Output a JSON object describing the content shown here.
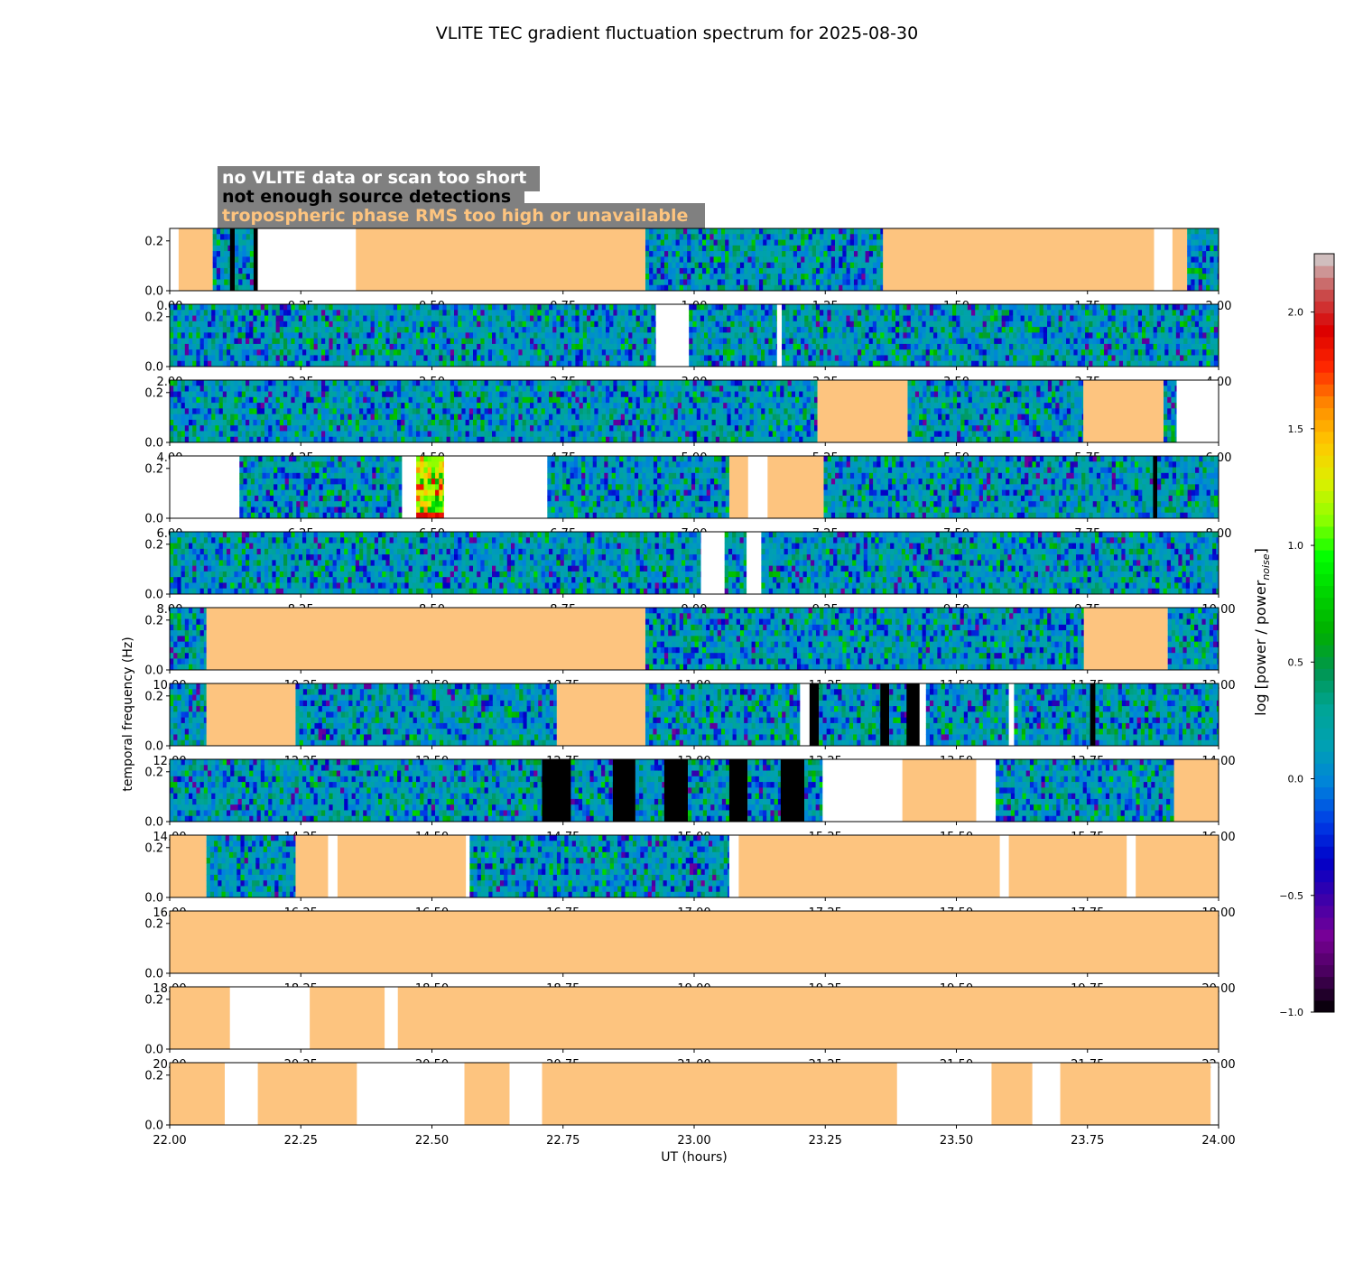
{
  "chart_data": {
    "type": "heatmap",
    "title": "VLITE TEC gradient fluctuation spectrum for 2025-08-30",
    "xlabel": "UT (hours)",
    "ylabel": "temporal frequency (Hz)",
    "colorbar": {
      "label": "log [power / power",
      "label_sub": "noise",
      "label_end": "]",
      "range": [
        -1.0,
        2.25
      ],
      "ticks": [
        "−1.0",
        "−0.5",
        "0.0",
        "0.5",
        "1.0",
        "1.5",
        "2.0"
      ],
      "tick_values": [
        -1.0,
        -0.5,
        0.0,
        0.5,
        1.0,
        1.5,
        2.0
      ]
    },
    "legend": [
      {
        "label": "no VLITE data or scan too short",
        "color": "#ffffff"
      },
      {
        "label": "not enough source detections",
        "color": "#000000"
      },
      {
        "label": "tropospheric phase RMS too high or unavailable",
        "color": "#fdc47f"
      }
    ],
    "ylim": [
      0,
      0.25
    ],
    "yticks": [
      "0.0",
      "0.2"
    ],
    "ytick_values": [
      0.0,
      0.2
    ],
    "panels": [
      {
        "xlim": [
          0,
          2
        ],
        "xticks": [
          "0.00",
          "0.25",
          "0.50",
          "0.75",
          "1.00",
          "1.25",
          "1.50",
          "1.75",
          "2.00"
        ],
        "segments": [
          {
            "start": 0.0,
            "end": 0.017,
            "status": "none"
          },
          {
            "start": 0.017,
            "end": 0.082,
            "status": "tropo"
          },
          {
            "start": 0.082,
            "end": 0.115,
            "status": "data"
          },
          {
            "start": 0.115,
            "end": 0.124,
            "status": "detect"
          },
          {
            "start": 0.124,
            "end": 0.16,
            "status": "data"
          },
          {
            "start": 0.16,
            "end": 0.168,
            "status": "detect"
          },
          {
            "start": 0.168,
            "end": 0.355,
            "status": "none"
          },
          {
            "start": 0.355,
            "end": 0.907,
            "status": "tropo"
          },
          {
            "start": 0.907,
            "end": 1.36,
            "status": "data"
          },
          {
            "start": 1.36,
            "end": 1.877,
            "status": "tropo"
          },
          {
            "start": 1.877,
            "end": 1.912,
            "status": "none"
          },
          {
            "start": 1.912,
            "end": 1.94,
            "status": "tropo"
          },
          {
            "start": 1.94,
            "end": 2.0,
            "status": "data"
          }
        ]
      },
      {
        "xlim": [
          2,
          4
        ],
        "xticks": [
          "2.00",
          "2.25",
          "2.50",
          "2.75",
          "3.00",
          "3.25",
          "3.50",
          "3.75",
          "4.00"
        ],
        "segments": [
          {
            "start": 2.0,
            "end": 2.927,
            "status": "data"
          },
          {
            "start": 2.927,
            "end": 2.99,
            "status": "none"
          },
          {
            "start": 2.99,
            "end": 3.158,
            "status": "data"
          },
          {
            "start": 3.158,
            "end": 3.167,
            "status": "none"
          },
          {
            "start": 3.167,
            "end": 4.0,
            "status": "data"
          }
        ]
      },
      {
        "xlim": [
          4,
          6
        ],
        "xticks": [
          "4.00",
          "4.25",
          "4.50",
          "4.75",
          "5.00",
          "5.25",
          "5.50",
          "5.75",
          "6.00"
        ],
        "segments": [
          {
            "start": 4.0,
            "end": 5.235,
            "status": "data"
          },
          {
            "start": 5.235,
            "end": 5.407,
            "status": "tropo"
          },
          {
            "start": 5.407,
            "end": 5.742,
            "status": "data"
          },
          {
            "start": 5.742,
            "end": 5.895,
            "status": "tropo"
          },
          {
            "start": 5.895,
            "end": 5.92,
            "status": "data"
          },
          {
            "start": 5.92,
            "end": 6.0,
            "status": "none"
          }
        ]
      },
      {
        "xlim": [
          6,
          8
        ],
        "xticks": [
          "6.00",
          "6.25",
          "6.50",
          "6.75",
          "7.00",
          "7.25",
          "7.50",
          "7.75",
          "8.00"
        ],
        "segments": [
          {
            "start": 6.0,
            "end": 6.133,
            "status": "none"
          },
          {
            "start": 6.133,
            "end": 6.443,
            "status": "data"
          },
          {
            "start": 6.443,
            "end": 6.47,
            "status": "none"
          },
          {
            "start": 6.47,
            "end": 6.523,
            "status": "hot"
          },
          {
            "start": 6.523,
            "end": 6.72,
            "status": "none"
          },
          {
            "start": 6.72,
            "end": 7.067,
            "status": "data"
          },
          {
            "start": 7.067,
            "end": 7.103,
            "status": "tropo"
          },
          {
            "start": 7.103,
            "end": 7.14,
            "status": "none"
          },
          {
            "start": 7.14,
            "end": 7.247,
            "status": "tropo"
          },
          {
            "start": 7.247,
            "end": 7.875,
            "status": "data"
          },
          {
            "start": 7.875,
            "end": 7.883,
            "status": "detect"
          },
          {
            "start": 7.883,
            "end": 8.0,
            "status": "data"
          }
        ]
      },
      {
        "xlim": [
          8,
          10
        ],
        "xticks": [
          "8.00",
          "8.25",
          "8.50",
          "8.75",
          "9.00",
          "9.25",
          "9.50",
          "9.75",
          "10.00"
        ],
        "segments": [
          {
            "start": 8.0,
            "end": 9.013,
            "status": "data"
          },
          {
            "start": 9.013,
            "end": 9.058,
            "status": "none"
          },
          {
            "start": 9.058,
            "end": 9.1,
            "status": "data"
          },
          {
            "start": 9.1,
            "end": 9.128,
            "status": "none"
          },
          {
            "start": 9.128,
            "end": 10.0,
            "status": "data"
          }
        ]
      },
      {
        "xlim": [
          10,
          12
        ],
        "xticks": [
          "10.00",
          "10.25",
          "10.50",
          "10.75",
          "11.00",
          "11.25",
          "11.50",
          "11.75",
          "12.00"
        ],
        "segments": [
          {
            "start": 10.0,
            "end": 10.07,
            "status": "data"
          },
          {
            "start": 10.07,
            "end": 10.907,
            "status": "tropo"
          },
          {
            "start": 10.907,
            "end": 11.743,
            "status": "data"
          },
          {
            "start": 11.743,
            "end": 11.903,
            "status": "tropo"
          },
          {
            "start": 11.903,
            "end": 12.0,
            "status": "data"
          }
        ]
      },
      {
        "xlim": [
          12,
          14
        ],
        "xticks": [
          "12.00",
          "12.25",
          "12.50",
          "12.75",
          "13.00",
          "13.25",
          "13.50",
          "13.75",
          "14.00"
        ],
        "segments": [
          {
            "start": 12.0,
            "end": 12.07,
            "status": "data"
          },
          {
            "start": 12.07,
            "end": 12.24,
            "status": "tropo"
          },
          {
            "start": 12.24,
            "end": 12.738,
            "status": "data"
          },
          {
            "start": 12.738,
            "end": 12.907,
            "status": "tropo"
          },
          {
            "start": 12.907,
            "end": 13.202,
            "status": "data"
          },
          {
            "start": 13.202,
            "end": 13.22,
            "status": "none"
          },
          {
            "start": 13.22,
            "end": 13.238,
            "status": "detect"
          },
          {
            "start": 13.238,
            "end": 13.355,
            "status": "data"
          },
          {
            "start": 13.355,
            "end": 13.372,
            "status": "detect"
          },
          {
            "start": 13.372,
            "end": 13.405,
            "status": "data"
          },
          {
            "start": 13.405,
            "end": 13.43,
            "status": "detect"
          },
          {
            "start": 13.43,
            "end": 13.442,
            "status": "none"
          },
          {
            "start": 13.442,
            "end": 13.6,
            "status": "data"
          },
          {
            "start": 13.6,
            "end": 13.61,
            "status": "none"
          },
          {
            "start": 13.61,
            "end": 13.755,
            "status": "data"
          },
          {
            "start": 13.755,
            "end": 13.765,
            "status": "detect"
          },
          {
            "start": 13.765,
            "end": 14.0,
            "status": "data"
          }
        ]
      },
      {
        "xlim": [
          14,
          16
        ],
        "xticks": [
          "14.00",
          "14.25",
          "14.50",
          "14.75",
          "15.00",
          "15.25",
          "15.50",
          "15.75",
          "16.00"
        ],
        "segments": [
          {
            "start": 14.0,
            "end": 14.71,
            "status": "data"
          },
          {
            "start": 14.71,
            "end": 14.765,
            "status": "detect"
          },
          {
            "start": 14.765,
            "end": 14.845,
            "status": "data"
          },
          {
            "start": 14.845,
            "end": 14.888,
            "status": "detect"
          },
          {
            "start": 14.888,
            "end": 14.943,
            "status": "data"
          },
          {
            "start": 14.943,
            "end": 14.988,
            "status": "detect"
          },
          {
            "start": 14.988,
            "end": 15.067,
            "status": "data"
          },
          {
            "start": 15.067,
            "end": 15.102,
            "status": "detect"
          },
          {
            "start": 15.102,
            "end": 15.165,
            "status": "data"
          },
          {
            "start": 15.165,
            "end": 15.21,
            "status": "detect"
          },
          {
            "start": 15.21,
            "end": 15.245,
            "status": "data"
          },
          {
            "start": 15.245,
            "end": 15.397,
            "status": "none"
          },
          {
            "start": 15.397,
            "end": 15.538,
            "status": "tropo"
          },
          {
            "start": 15.538,
            "end": 15.575,
            "status": "none"
          },
          {
            "start": 15.575,
            "end": 15.915,
            "status": "data"
          },
          {
            "start": 15.915,
            "end": 16.0,
            "status": "tropo"
          }
        ]
      },
      {
        "xlim": [
          16,
          18
        ],
        "xticks": [
          "16.00",
          "16.25",
          "16.50",
          "16.75",
          "17.00",
          "17.25",
          "17.50",
          "17.75",
          "18.00"
        ],
        "segments": [
          {
            "start": 16.0,
            "end": 16.07,
            "status": "tropo"
          },
          {
            "start": 16.07,
            "end": 16.24,
            "status": "data"
          },
          {
            "start": 16.24,
            "end": 16.302,
            "status": "tropo"
          },
          {
            "start": 16.302,
            "end": 16.32,
            "status": "none"
          },
          {
            "start": 16.32,
            "end": 16.565,
            "status": "tropo"
          },
          {
            "start": 16.565,
            "end": 16.572,
            "status": "none"
          },
          {
            "start": 16.572,
            "end": 17.067,
            "status": "data"
          },
          {
            "start": 17.067,
            "end": 17.085,
            "status": "none"
          },
          {
            "start": 17.085,
            "end": 17.583,
            "status": "tropo"
          },
          {
            "start": 17.583,
            "end": 17.6,
            "status": "none"
          },
          {
            "start": 17.6,
            "end": 17.825,
            "status": "tropo"
          },
          {
            "start": 17.825,
            "end": 17.842,
            "status": "none"
          },
          {
            "start": 17.842,
            "end": 18.0,
            "status": "tropo"
          }
        ]
      },
      {
        "xlim": [
          18,
          20
        ],
        "xticks": [
          "18.00",
          "18.25",
          "18.50",
          "18.75",
          "19.00",
          "19.25",
          "19.50",
          "19.75",
          "20.00"
        ],
        "segments": [
          {
            "start": 18.0,
            "end": 20.0,
            "status": "tropo"
          }
        ]
      },
      {
        "xlim": [
          20,
          22
        ],
        "xticks": [
          "20.00",
          "20.25",
          "20.50",
          "20.75",
          "21.00",
          "21.25",
          "21.50",
          "21.75",
          "22.00"
        ],
        "segments": [
          {
            "start": 20.0,
            "end": 20.115,
            "status": "tropo"
          },
          {
            "start": 20.115,
            "end": 20.267,
            "status": "none"
          },
          {
            "start": 20.267,
            "end": 20.41,
            "status": "tropo"
          },
          {
            "start": 20.41,
            "end": 20.435,
            "status": "none"
          },
          {
            "start": 20.435,
            "end": 22.0,
            "status": "tropo"
          }
        ]
      },
      {
        "xlim": [
          22,
          24
        ],
        "xticks": [
          "22.00",
          "22.25",
          "22.50",
          "22.75",
          "23.00",
          "23.25",
          "23.50",
          "23.75",
          "24.00"
        ],
        "segments": [
          {
            "start": 22.0,
            "end": 22.105,
            "status": "tropo"
          },
          {
            "start": 22.105,
            "end": 22.168,
            "status": "none"
          },
          {
            "start": 22.168,
            "end": 22.357,
            "status": "tropo"
          },
          {
            "start": 22.357,
            "end": 22.562,
            "status": "none"
          },
          {
            "start": 22.562,
            "end": 22.648,
            "status": "tropo"
          },
          {
            "start": 22.648,
            "end": 22.71,
            "status": "none"
          },
          {
            "start": 22.71,
            "end": 23.387,
            "status": "tropo"
          },
          {
            "start": 23.387,
            "end": 23.567,
            "status": "none"
          },
          {
            "start": 23.567,
            "end": 23.645,
            "status": "tropo"
          },
          {
            "start": 23.645,
            "end": 23.698,
            "status": "none"
          },
          {
            "start": 23.698,
            "end": 23.985,
            "status": "tropo"
          },
          {
            "start": 23.985,
            "end": 24.0,
            "status": "none"
          }
        ]
      }
    ]
  },
  "colors": {
    "tropo": "#fdc47f",
    "detect": "#000000",
    "none": "#ffffff",
    "legend_box": "#808080",
    "legend_text_none": "#ffffff",
    "legend_text_detect": "#000000",
    "legend_text_tropo": "#fdc47f"
  }
}
